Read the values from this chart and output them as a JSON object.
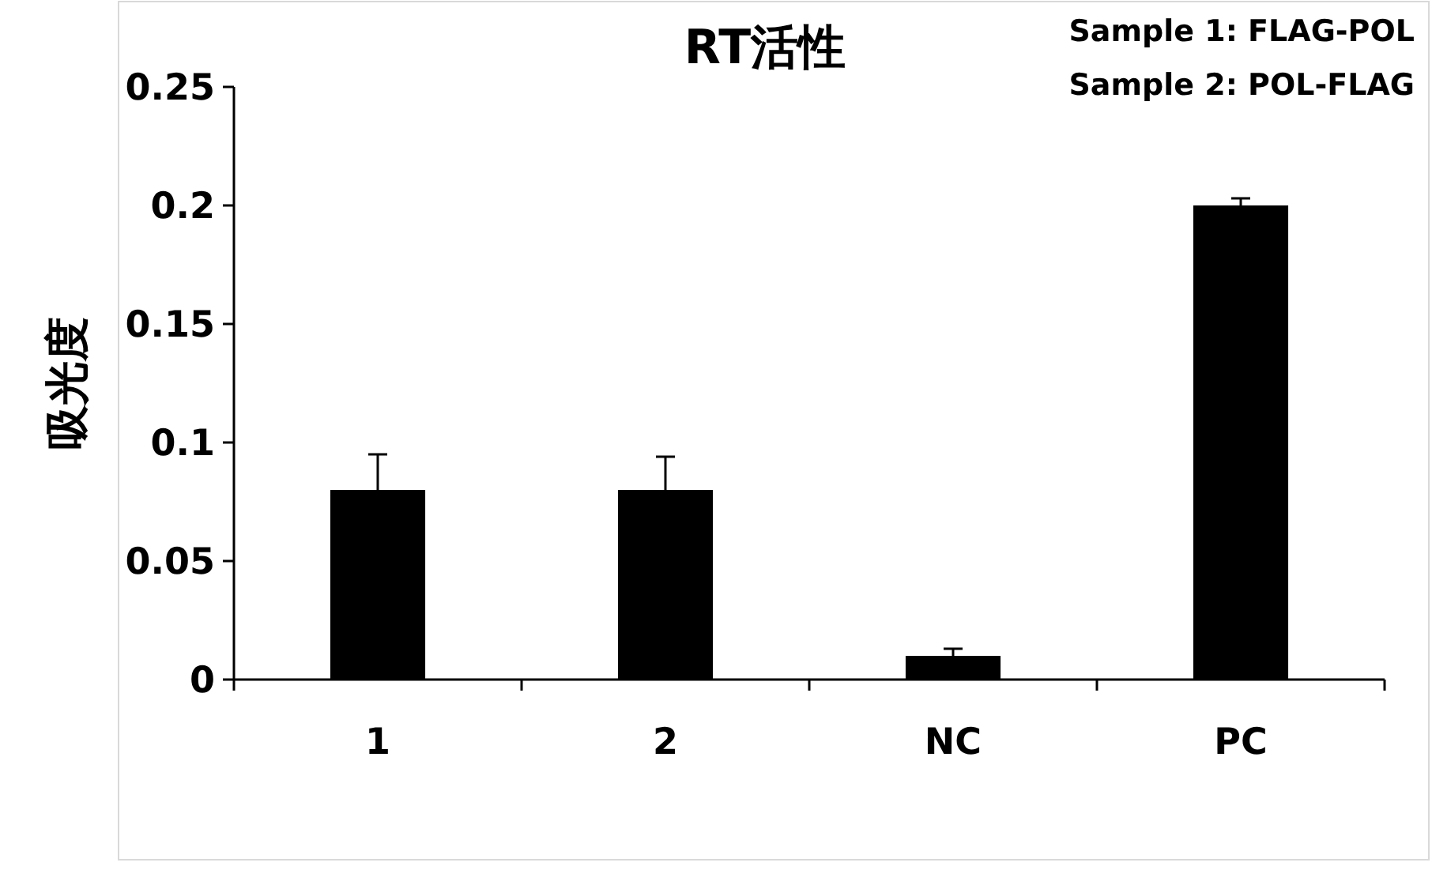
{
  "chart_data": {
    "type": "bar",
    "title": "RT活性",
    "ylabel": "吸光度",
    "categories": [
      "1",
      "2",
      "NC",
      "PC"
    ],
    "values": [
      0.08,
      0.08,
      0.01,
      0.2
    ],
    "errors": [
      [
        0.08,
        0.095
      ],
      [
        0.08,
        0.094
      ],
      [
        0.01,
        0.013
      ],
      [
        0.2,
        0.203
      ]
    ],
    "color": "#000000",
    "ylim": [
      0,
      0.25
    ],
    "yticks": [
      0,
      0.05,
      0.1,
      0.15,
      0.2,
      0.25
    ],
    "grid": false,
    "annotations": [
      "Sample 1: FLAG-POL",
      "Sample 2: POL-FLAG"
    ]
  }
}
